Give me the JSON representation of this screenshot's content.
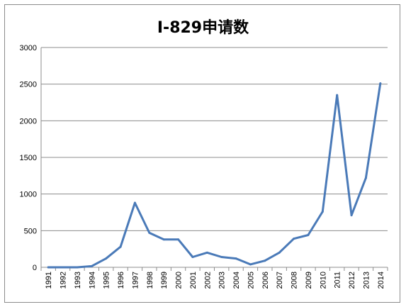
{
  "chart_data": {
    "type": "line",
    "title": "I-829申请数",
    "xlabel": "",
    "ylabel": "",
    "ylim": [
      0,
      3000
    ],
    "yticks": [
      0,
      500,
      1000,
      1500,
      2000,
      2500,
      3000
    ],
    "grid": true,
    "legend": "none",
    "line_color": "#4a7ab8",
    "x": [
      "1991",
      "1992",
      "1993",
      "1994",
      "1995",
      "1996",
      "1997",
      "1998",
      "1999",
      "2000",
      "2001",
      "2002",
      "2003",
      "2004",
      "2005",
      "2006",
      "2007",
      "2008",
      "2009",
      "2010",
      "2011",
      "2012",
      "2013",
      "2014"
    ],
    "values": [
      0,
      0,
      0,
      15,
      120,
      280,
      880,
      470,
      380,
      380,
      140,
      200,
      140,
      120,
      40,
      90,
      200,
      390,
      440,
      760,
      2350,
      710,
      1220,
      2510
    ]
  }
}
